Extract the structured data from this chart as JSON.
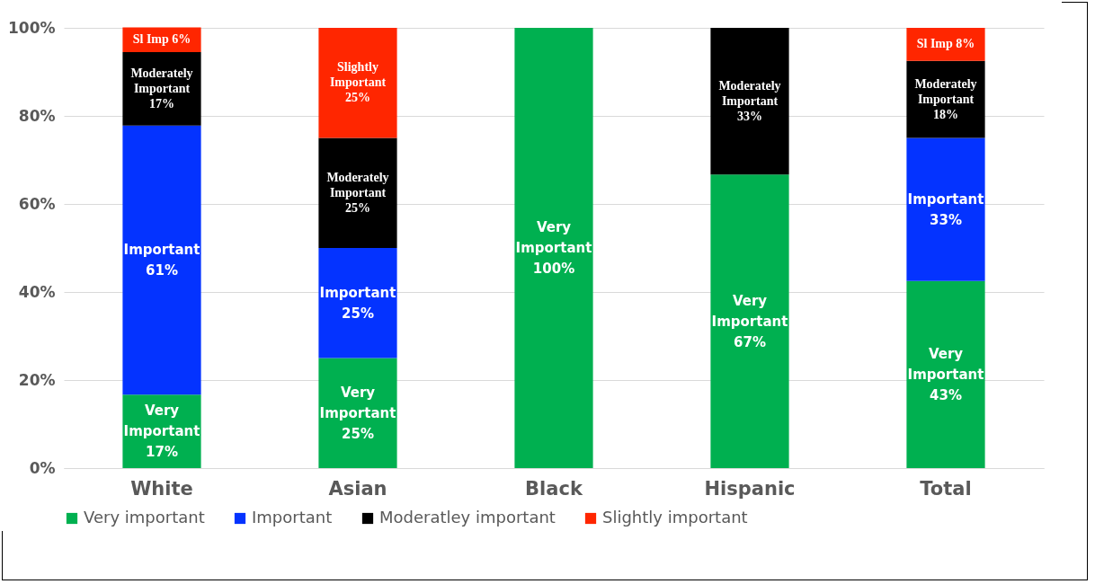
{
  "chart_data": {
    "type": "bar",
    "stacked": true,
    "categories": [
      "White",
      "Asian",
      "Black",
      "Hispanic",
      "Total"
    ],
    "series": [
      {
        "name": "Very important",
        "color": "#00b050",
        "values": [
          16.7,
          25,
          100,
          66.7,
          42.5
        ],
        "value_labels": [
          "Very\nImportant\n17%",
          "Very\nImportant\n25%",
          "Very\nImportant\n100%",
          "Very\nImportant\n67%",
          "Very\nImportant\n43%"
        ]
      },
      {
        "name": "Important",
        "color": "#0433ff",
        "values": [
          61.1,
          25,
          0,
          0,
          32.5
        ],
        "value_labels": [
          "Important\n61%",
          "Important\n25%",
          null,
          null,
          "Important\n33%"
        ]
      },
      {
        "name": "Moderatley important",
        "color": "#000000",
        "values": [
          16.7,
          25,
          0,
          33.3,
          17.5
        ],
        "value_labels": [
          "Moderately\nImportant\n17%",
          "Moderately\nImportant\n25%",
          null,
          "Moderately\nImportant\n33%",
          "Moderately\nImportant\n18%"
        ]
      },
      {
        "name": "Slightly important",
        "color": "#ff2600",
        "values": [
          5.6,
          25,
          0,
          0,
          7.5
        ],
        "value_labels": [
          "Sl Imp 6%",
          "Slightly\nImportant\n25%",
          null,
          null,
          "Sl Imp 8%"
        ]
      }
    ],
    "ylim": [
      0,
      100
    ],
    "yticks": [
      {
        "value": 0,
        "label": "0%"
      },
      {
        "value": 20,
        "label": "20%"
      },
      {
        "value": 40,
        "label": "40%"
      },
      {
        "value": 60,
        "label": "60%"
      },
      {
        "value": 80,
        "label": "80%"
      },
      {
        "value": 100,
        "label": "100%"
      }
    ],
    "grid": "y",
    "legend": "bottom"
  }
}
